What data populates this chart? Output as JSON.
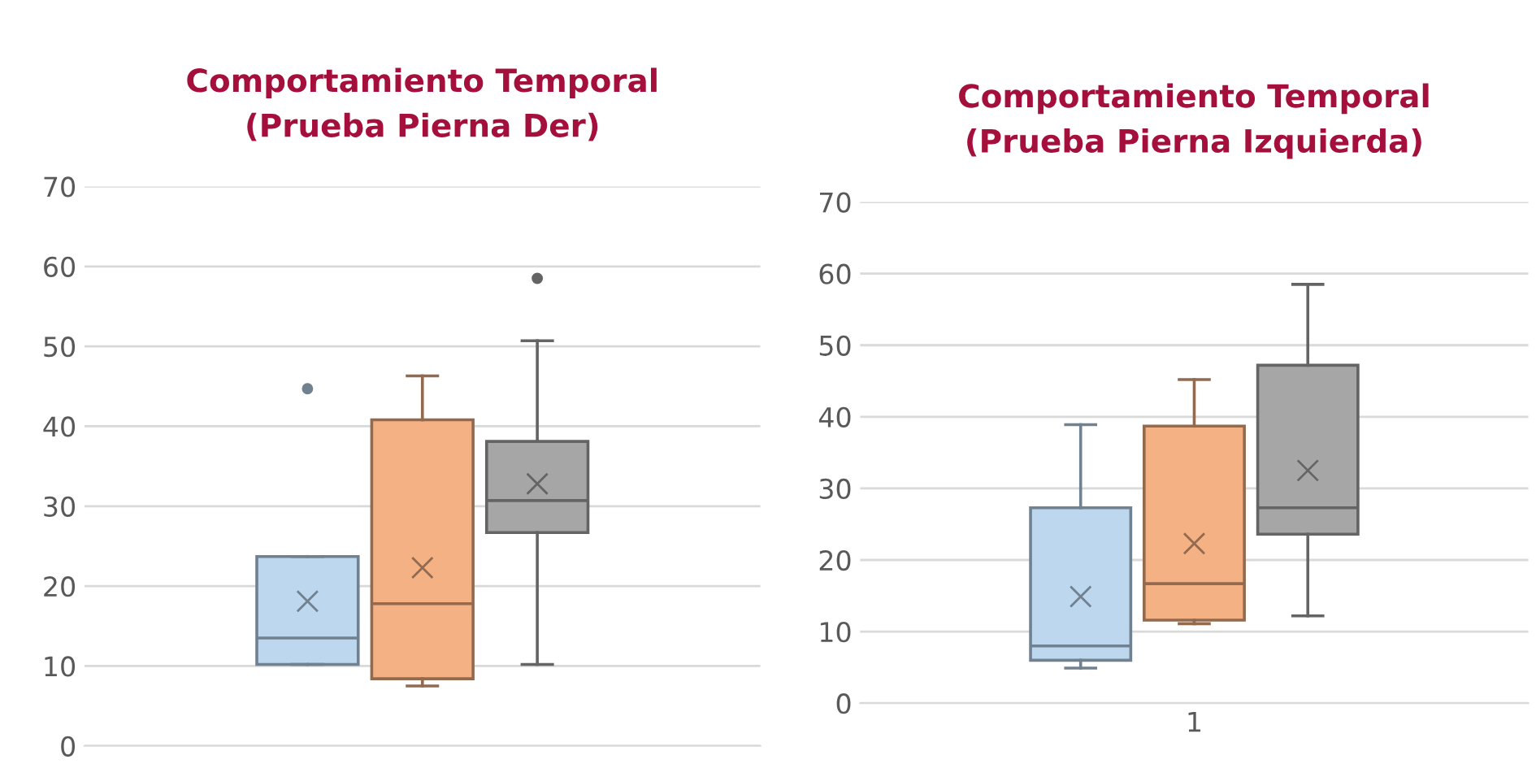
{
  "chart_data": [
    {
      "type": "box",
      "title": "Comportamiento Temporal\n(Prueba Pierna Der)",
      "categories": [
        null
      ],
      "ylim": [
        0,
        70
      ],
      "yticks": [
        0,
        10,
        20,
        30,
        40,
        50,
        60,
        70
      ],
      "grid": "y",
      "legend": false,
      "series": [
        {
          "color": "#bdd7ee",
          "boxes": [
            {
              "low": 10.2,
              "q1": 10.2,
              "median": 13.5,
              "q3": 23.7,
              "high": 23.7,
              "mean": 18.1,
              "outliers": [
                44.7
              ]
            }
          ]
        },
        {
          "color": "#f4b183",
          "boxes": [
            {
              "low": 7.5,
              "q1": 8.4,
              "median": 17.8,
              "q3": 40.8,
              "high": 46.3,
              "mean": 22.3
            }
          ]
        },
        {
          "color": "#a6a6a6",
          "boxes": [
            {
              "low": 10.2,
              "q1": 26.7,
              "median": 30.7,
              "q3": 38.1,
              "high": 50.7,
              "mean": 32.8,
              "outliers": [
                58.5
              ]
            }
          ]
        }
      ]
    },
    {
      "type": "box",
      "title": "Comportamiento Temporal\n(Prueba Pierna Izquierda)",
      "categories": [
        "1"
      ],
      "ylim": [
        0,
        70
      ],
      "yticks": [
        0,
        10,
        20,
        30,
        40,
        50,
        60,
        70
      ],
      "grid": "y",
      "legend": false,
      "series": [
        {
          "color": "#bdd7ee",
          "boxes": [
            {
              "low": 4.9,
              "q1": 6.0,
              "median": 8.0,
              "q3": 27.3,
              "high": 38.9,
              "mean": 14.9
            }
          ]
        },
        {
          "color": "#f4b183",
          "boxes": [
            {
              "low": 11.1,
              "q1": 11.6,
              "median": 16.7,
              "q3": 38.7,
              "high": 45.2,
              "mean": 22.3
            }
          ]
        },
        {
          "color": "#a6a6a6",
          "boxes": [
            {
              "low": 12.2,
              "q1": 23.6,
              "median": 27.3,
              "q3": 47.2,
              "high": 58.5,
              "mean": 32.5
            }
          ]
        }
      ]
    }
  ]
}
